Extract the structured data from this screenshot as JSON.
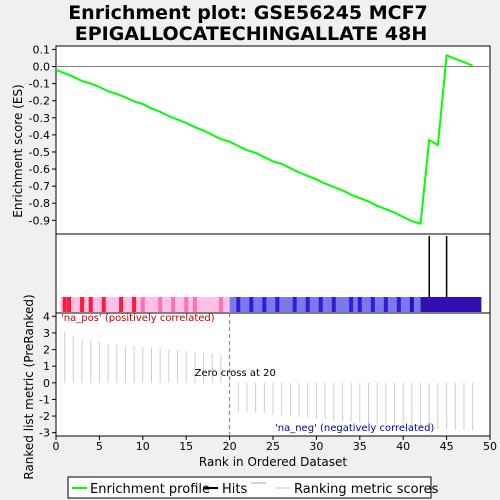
{
  "chart_data": {
    "type": "line",
    "title": [
      "Enrichment plot: GSE56245 MCF7",
      "EPIGALLOCATECHINGALLATE 48H"
    ],
    "xlabel": "Rank in Ordered Dataset",
    "xlim": [
      0,
      50
    ],
    "x_ticks": [
      0,
      5,
      10,
      15,
      20,
      25,
      30,
      35,
      40,
      45,
      50
    ],
    "colors": {
      "es_line": "#00ff00",
      "hits": "#000000",
      "ranking": "#cccccc",
      "pos_label": "#cc0000",
      "neg_label": "#0000aa",
      "background": "#f0f0f0"
    },
    "enrichment": {
      "ylabel": "Enrichment score (ES)",
      "ylim": [
        -0.98,
        0.12
      ],
      "y_ticks": [
        0.1,
        0.0,
        -0.1,
        -0.2,
        -0.3,
        -0.4,
        -0.5,
        -0.6,
        -0.7,
        -0.8,
        -0.9
      ],
      "y_tick_labels": [
        "0.1",
        "0.0",
        "-0.1",
        "-0.2",
        "-0.3",
        "-0.4",
        "-0.5",
        "-0.6",
        "-0.7",
        "-0.8",
        "-0.9"
      ],
      "x": [
        0,
        1,
        2,
        3,
        4,
        5,
        6,
        7,
        8,
        9,
        10,
        11,
        12,
        13,
        14,
        15,
        16,
        17,
        18,
        19,
        20,
        21,
        22,
        23,
        24,
        25,
        26,
        27,
        28,
        29,
        30,
        31,
        32,
        33,
        34,
        35,
        36,
        37,
        38,
        39,
        40,
        41,
        42,
        43,
        44,
        45,
        46,
        47,
        48
      ],
      "y": [
        -0.02,
        -0.04,
        -0.06,
        -0.085,
        -0.1,
        -0.12,
        -0.145,
        -0.16,
        -0.18,
        -0.205,
        -0.22,
        -0.245,
        -0.265,
        -0.29,
        -0.31,
        -0.33,
        -0.355,
        -0.375,
        -0.4,
        -0.425,
        -0.44,
        -0.465,
        -0.49,
        -0.505,
        -0.53,
        -0.555,
        -0.57,
        -0.595,
        -0.62,
        -0.64,
        -0.66,
        -0.685,
        -0.705,
        -0.725,
        -0.75,
        -0.77,
        -0.79,
        -0.815,
        -0.835,
        -0.855,
        -0.88,
        -0.905,
        -0.92,
        -0.43,
        -0.46,
        0.065,
        0.045,
        0.025,
        0.005
      ]
    },
    "hits": {
      "x": [
        43,
        45
      ]
    },
    "color_bar": {
      "pos_marks": [
        1,
        1.5,
        3,
        4,
        5.5,
        7.5,
        9,
        10,
        12,
        13.5,
        15,
        16,
        19
      ],
      "neg_marks": [
        21,
        22.5,
        24,
        25.5,
        27.5,
        29,
        30.5,
        32,
        34,
        35,
        36.5,
        38,
        39.5,
        41,
        43
      ]
    },
    "ranking": {
      "ylabel": "Ranked list metric (PreRanked)",
      "ylim": [
        -3.2,
        4.2
      ],
      "y_ticks": [
        4,
        3,
        2,
        1,
        0,
        -1,
        -2,
        -3
      ],
      "y_tick_labels": [
        "4",
        "3",
        "2",
        "1",
        "0",
        "-1",
        "-2",
        "-3"
      ],
      "x": [
        1,
        2,
        3,
        4,
        5,
        6,
        7,
        8,
        9,
        10,
        11,
        12,
        13,
        14,
        15,
        16,
        17,
        18,
        19,
        21,
        22,
        23,
        24,
        25,
        26,
        27,
        28,
        29,
        30,
        31,
        32,
        33,
        34,
        35,
        36,
        37,
        38,
        39,
        40,
        41,
        42,
        43,
        44,
        45,
        46,
        47,
        48
      ],
      "values": [
        3.05,
        2.8,
        2.65,
        2.55,
        2.45,
        2.35,
        2.3,
        2.25,
        2.2,
        2.15,
        2.1,
        2.05,
        2.0,
        1.95,
        1.9,
        1.85,
        1.8,
        1.75,
        1.7,
        -1.7,
        -1.75,
        -1.8,
        -1.85,
        -1.9,
        -1.95,
        -2.0,
        -2.05,
        -2.1,
        -2.15,
        -2.2,
        -2.25,
        -2.3,
        -2.35,
        -2.4,
        -2.45,
        -2.5,
        -2.55,
        -2.6,
        -2.65,
        -2.7,
        -2.72,
        -2.74,
        -2.76,
        -2.78,
        -2.8,
        -2.82,
        -2.85
      ],
      "zero_cross": 20,
      "zero_cross_label": "Zero cross at 20",
      "pos_label": "'na_pos' (positively correlated)",
      "neg_label": "'na_neg' (negatively correlated)"
    },
    "legend": {
      "position": "bottom",
      "entries": [
        "Enrichment profile",
        "Hits",
        "Ranking metric scores"
      ]
    }
  }
}
